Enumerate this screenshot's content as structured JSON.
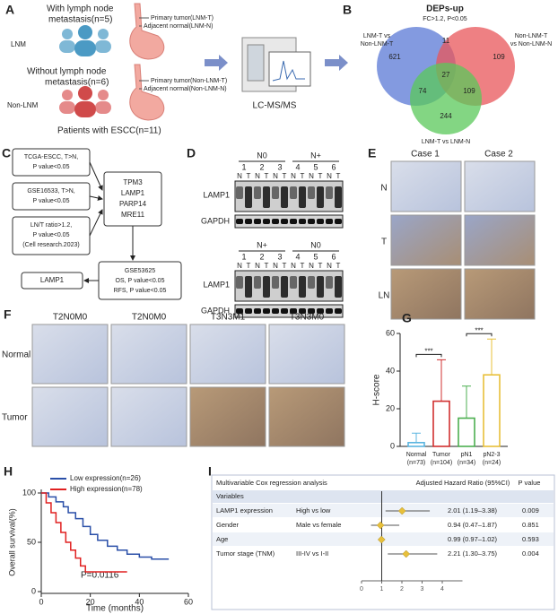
{
  "panel_a": {
    "label": "A",
    "lnm_title": [
      "With lymph node",
      "metastasis(n=5)"
    ],
    "lnm_group": "LNM",
    "lnm_primary": "Primary tumor(LNM-T)",
    "lnm_adjacent": "Adjacent normal(LNM-N)",
    "non_title": [
      "Without lymph node",
      "metastasis(n=6)"
    ],
    "non_group": "Non-LNM",
    "non_primary": "Primary tumor(Non-LNM-T)",
    "non_adjacent": "Adjacent normal(Non-LNM-N)",
    "footer": "Patients with ESCC(n=11)",
    "method": "LC-MS/MS"
  },
  "panel_b": {
    "label": "B",
    "title": "DEPs-up",
    "subtitle": "FC>1.2, P<0.05",
    "sets": [
      {
        "name": [
          "LNM-T vs",
          "Non-LNM-T"
        ],
        "color": "#5a78d6"
      },
      {
        "name": [
          "Non-LNM-T",
          "vs Non-LNM-N"
        ],
        "color": "#e8565a"
      },
      {
        "name": [
          "LNM-T vs LNM-N"
        ],
        "color": "#5ac85a"
      }
    ],
    "regions": {
      "blue_only": 621,
      "blue_red": 11,
      "red_only": 109,
      "all": 27,
      "blue_green": 74,
      "red_green": 109,
      "green_only": 244
    }
  },
  "panel_c": {
    "label": "C",
    "sources": [
      [
        "TCGA-ESCC, T>N,",
        "P value<0.05"
      ],
      [
        "GSE16533, T>N,",
        "P value<0.05"
      ],
      [
        "LN/T ratio>1.2,",
        "P value<0.05",
        "(Cell research.2023)"
      ]
    ],
    "genes": [
      "TPM3",
      "LAMP1",
      "PARP14",
      "MRE11"
    ],
    "validation": [
      "GSE53625",
      "OS, P value<0.05",
      "RFS, P value<0.05"
    ],
    "result": "LAMP1"
  },
  "panel_d": {
    "label": "D",
    "blots": [
      {
        "groups": [
          "N0",
          "N+"
        ],
        "patients": [
          1,
          2,
          3,
          4,
          5,
          6
        ]
      },
      {
        "groups": [
          "N+",
          "N0"
        ],
        "patients": [
          1,
          2,
          3,
          4,
          5,
          6
        ]
      }
    ],
    "lanes": [
      "N",
      "T"
    ],
    "proteins": [
      "LAMP1",
      "GAPDH"
    ]
  },
  "panel_e": {
    "label": "E",
    "columns": [
      "Case 1",
      "Case 2"
    ],
    "rows": [
      "N",
      "T",
      "LN"
    ]
  },
  "panel_f": {
    "label": "F",
    "columns": [
      "T2N0M0",
      "T2N0M0",
      "T3N3M1",
      "T3N3M0"
    ],
    "rows": [
      "Normal",
      "Tumor"
    ]
  },
  "chart_data": [
    {
      "type": "bar",
      "panel": "G",
      "ylabel": "H-score",
      "categories": [
        [
          "Normal",
          "(n=73)"
        ],
        [
          "Tumor",
          "(n=104)"
        ],
        [
          "pN1",
          "(n=34)"
        ],
        [
          "pN2-3",
          "(n=24)"
        ]
      ],
      "values": [
        2,
        24,
        15,
        38
      ],
      "errors": [
        5,
        22,
        17,
        19
      ],
      "colors": [
        "#5bb5e0",
        "#d03030",
        "#4caf50",
        "#e8c03a"
      ],
      "ylim": [
        0,
        60
      ],
      "yticks": [
        0,
        20,
        40,
        60
      ],
      "significance": [
        {
          "pair": [
            0,
            1
          ],
          "label": "***"
        },
        {
          "pair": [
            2,
            3
          ],
          "label": "***"
        }
      ]
    },
    {
      "type": "line",
      "panel": "H",
      "xlabel": "Time (months)",
      "ylabel": "Overall survival(%)",
      "annotation": "P=0.0116",
      "xlim": [
        0,
        60
      ],
      "xticks": [
        0,
        20,
        40,
        60
      ],
      "ylim": [
        0,
        100
      ],
      "yticks": [
        0,
        50,
        100
      ],
      "series": [
        {
          "name": "Low expression(n=26)",
          "color": "#2a4fa8",
          "x": [
            0,
            3,
            3,
            6,
            6,
            9,
            9,
            11,
            11,
            14,
            14,
            17,
            17,
            20,
            20,
            23,
            23,
            27,
            27,
            31,
            31,
            35,
            35,
            40,
            40,
            45,
            45,
            52
          ],
          "values": [
            100,
            100,
            96,
            96,
            91,
            91,
            86,
            86,
            80,
            80,
            74,
            74,
            66,
            66,
            58,
            58,
            52,
            52,
            46,
            46,
            42,
            42,
            38,
            38,
            35,
            35,
            33,
            33
          ]
        },
        {
          "name": "High expression(n=78)",
          "color": "#e02020",
          "x": [
            0,
            2,
            2,
            4,
            4,
            6,
            6,
            8,
            8,
            10,
            10,
            12,
            12,
            14,
            14,
            16,
            16,
            18,
            18,
            35
          ],
          "values": [
            100,
            100,
            90,
            90,
            80,
            80,
            70,
            70,
            60,
            60,
            50,
            50,
            42,
            42,
            34,
            34,
            26,
            26,
            20,
            20
          ]
        }
      ]
    },
    {
      "type": "forest",
      "panel": "I",
      "title": "Multivariable Cox regression analysis",
      "columns": [
        "Adjusted Hazard Ratio (95%CI)",
        "P value"
      ],
      "section": "Variables",
      "xlim": [
        0,
        5
      ],
      "xticks": [
        0,
        1,
        2,
        3,
        4
      ],
      "reference": 1,
      "color": "#e8c03a",
      "rows": [
        {
          "variable": "LAMP1 expression",
          "comparison": "High vs low",
          "hr": 2.01,
          "ci": [
            1.19,
            3.38
          ],
          "label": "2.01 (1.19–3.38)",
          "p": 0.009
        },
        {
          "variable": "Gender",
          "comparison": "Male vs female",
          "hr": 0.94,
          "ci": [
            0.47,
            1.87
          ],
          "label": "0.94 (0.47–1.87)",
          "p": 0.851
        },
        {
          "variable": "Age",
          "hr": 0.99,
          "ci": [
            0.97,
            1.02
          ],
          "label": "0.99 (0.97–1.02)",
          "p": 0.593
        },
        {
          "variable": "Tumor stage (TNM)",
          "comparison": "III-IV vs I-II",
          "hr": 2.21,
          "ci": [
            1.3,
            3.75
          ],
          "label": "2.21 (1.30–3.75)",
          "p": 0.004
        }
      ]
    }
  ]
}
